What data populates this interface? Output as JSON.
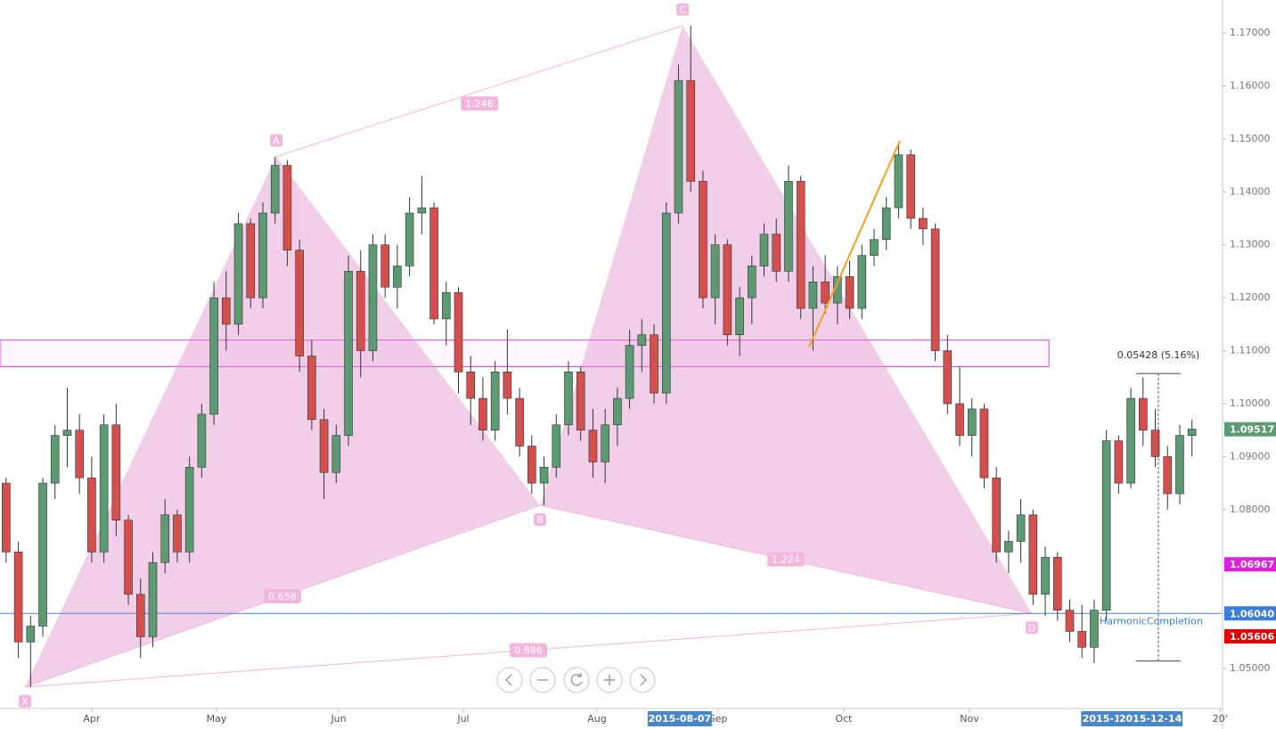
{
  "chart_data": {
    "type": "candlestick",
    "xlim": [
      0,
      100
    ],
    "ylim": [
      1.04244,
      1.17623
    ],
    "xticks": [
      {
        "value": 7.5,
        "label": "Apr"
      },
      {
        "value": 17.71,
        "label": "May"
      },
      {
        "value": 27.7,
        "label": "Jun"
      },
      {
        "value": 37.9,
        "label": "Jul"
      },
      {
        "value": 48.83,
        "label": "Aug"
      },
      {
        "value": 58.75,
        "label": "Sep"
      },
      {
        "value": 69.02,
        "label": "Oct"
      },
      {
        "value": 79.3,
        "label": "Nov"
      },
      {
        "value": 99.8,
        "label": "20'"
      }
    ],
    "yticks": [
      {
        "value": 1.05,
        "label": "1.05000"
      },
      {
        "value": 1.06,
        "label": "1.06000"
      },
      {
        "value": 1.07,
        "label": "1.07000"
      },
      {
        "value": 1.08,
        "label": "1.08000"
      },
      {
        "value": 1.09,
        "label": "1.09000"
      },
      {
        "value": 1.1,
        "label": "1.10000"
      },
      {
        "value": 1.11,
        "label": "1.11000"
      },
      {
        "value": 1.12,
        "label": "1.12000"
      },
      {
        "value": 1.13,
        "label": "1.13000"
      },
      {
        "value": 1.14,
        "label": "1.14000"
      },
      {
        "value": 1.15,
        "label": "1.15000"
      },
      {
        "value": 1.16,
        "label": "1.16000"
      },
      {
        "value": 1.17,
        "label": "1.17000"
      }
    ],
    "up_color": "#5b9a73",
    "down_color": "#d4504e",
    "ohlc": [
      [
        1.085,
        1.086,
        1.07,
        1.072
      ],
      [
        1.072,
        1.074,
        1.052,
        1.055
      ],
      [
        1.055,
        1.06,
        1.0465,
        1.058
      ],
      [
        1.058,
        1.086,
        1.056,
        1.085
      ],
      [
        1.085,
        1.096,
        1.082,
        1.094
      ],
      [
        1.094,
        1.103,
        1.088,
        1.095
      ],
      [
        1.095,
        1.098,
        1.083,
        1.086
      ],
      [
        1.086,
        1.09,
        1.07,
        1.072
      ],
      [
        1.072,
        1.098,
        1.07,
        1.096
      ],
      [
        1.096,
        1.1,
        1.075,
        1.078
      ],
      [
        1.078,
        1.079,
        1.062,
        1.064
      ],
      [
        1.064,
        1.067,
        1.052,
        1.056
      ],
      [
        1.056,
        1.072,
        1.054,
        1.07
      ],
      [
        1.07,
        1.082,
        1.068,
        1.079
      ],
      [
        1.079,
        1.08,
        1.07,
        1.072
      ],
      [
        1.072,
        1.09,
        1.07,
        1.088
      ],
      [
        1.088,
        1.1,
        1.086,
        1.098
      ],
      [
        1.098,
        1.123,
        1.096,
        1.12
      ],
      [
        1.12,
        1.125,
        1.11,
        1.115
      ],
      [
        1.115,
        1.136,
        1.113,
        1.134
      ],
      [
        1.134,
        1.135,
        1.118,
        1.12
      ],
      [
        1.12,
        1.138,
        1.118,
        1.136
      ],
      [
        1.136,
        1.1467,
        1.134,
        1.145
      ],
      [
        1.145,
        1.146,
        1.126,
        1.129
      ],
      [
        1.129,
        1.131,
        1.106,
        1.109
      ],
      [
        1.109,
        1.112,
        1.095,
        1.097
      ],
      [
        1.097,
        1.099,
        1.082,
        1.087
      ],
      [
        1.087,
        1.096,
        1.085,
        1.094
      ],
      [
        1.094,
        1.128,
        1.092,
        1.125
      ],
      [
        1.125,
        1.129,
        1.105,
        1.11
      ],
      [
        1.11,
        1.132,
        1.108,
        1.13
      ],
      [
        1.13,
        1.132,
        1.12,
        1.122
      ],
      [
        1.122,
        1.13,
        1.118,
        1.126
      ],
      [
        1.126,
        1.139,
        1.124,
        1.136
      ],
      [
        1.136,
        1.143,
        1.132,
        1.137
      ],
      [
        1.137,
        1.138,
        1.115,
        1.116
      ],
      [
        1.116,
        1.123,
        1.111,
        1.121
      ],
      [
        1.121,
        1.122,
        1.102,
        1.106
      ],
      [
        1.106,
        1.109,
        1.096,
        1.101
      ],
      [
        1.101,
        1.105,
        1.093,
        1.095
      ],
      [
        1.095,
        1.108,
        1.093,
        1.106
      ],
      [
        1.106,
        1.114,
        1.098,
        1.101
      ],
      [
        1.101,
        1.103,
        1.09,
        1.092
      ],
      [
        1.092,
        1.094,
        1.083,
        1.085
      ],
      [
        1.085,
        1.09,
        1.0808,
        1.088
      ],
      [
        1.088,
        1.098,
        1.086,
        1.096
      ],
      [
        1.096,
        1.108,
        1.094,
        1.106
      ],
      [
        1.106,
        1.107,
        1.093,
        1.095
      ],
      [
        1.095,
        1.099,
        1.086,
        1.089
      ],
      [
        1.089,
        1.099,
        1.085,
        1.096
      ],
      [
        1.096,
        1.103,
        1.092,
        1.101
      ],
      [
        1.101,
        1.114,
        1.099,
        1.111
      ],
      [
        1.111,
        1.116,
        1.106,
        1.113
      ],
      [
        1.113,
        1.115,
        1.1,
        1.102
      ],
      [
        1.102,
        1.138,
        1.1,
        1.136
      ],
      [
        1.136,
        1.164,
        1.134,
        1.161
      ],
      [
        1.161,
        1.1714,
        1.14,
        1.142
      ],
      [
        1.142,
        1.144,
        1.118,
        1.12
      ],
      [
        1.12,
        1.132,
        1.115,
        1.13
      ],
      [
        1.13,
        1.131,
        1.111,
        1.113
      ],
      [
        1.113,
        1.122,
        1.109,
        1.12
      ],
      [
        1.12,
        1.128,
        1.115,
        1.126
      ],
      [
        1.126,
        1.134,
        1.124,
        1.132
      ],
      [
        1.132,
        1.135,
        1.123,
        1.125
      ],
      [
        1.125,
        1.145,
        1.123,
        1.142
      ],
      [
        1.142,
        1.143,
        1.116,
        1.118
      ],
      [
        1.118,
        1.126,
        1.11,
        1.123
      ],
      [
        1.123,
        1.128,
        1.117,
        1.119
      ],
      [
        1.119,
        1.126,
        1.115,
        1.124
      ],
      [
        1.124,
        1.127,
        1.116,
        1.118
      ],
      [
        1.118,
        1.13,
        1.116,
        1.128
      ],
      [
        1.128,
        1.133,
        1.126,
        1.131
      ],
      [
        1.131,
        1.139,
        1.129,
        1.137
      ],
      [
        1.137,
        1.149,
        1.135,
        1.147
      ],
      [
        1.147,
        1.148,
        1.133,
        1.135
      ],
      [
        1.135,
        1.137,
        1.13,
        1.133
      ],
      [
        1.133,
        1.134,
        1.108,
        1.11
      ],
      [
        1.11,
        1.113,
        1.098,
        1.1
      ],
      [
        1.1,
        1.107,
        1.092,
        1.094
      ],
      [
        1.094,
        1.101,
        1.09,
        1.099
      ],
      [
        1.099,
        1.1,
        1.084,
        1.086
      ],
      [
        1.086,
        1.088,
        1.07,
        1.072
      ],
      [
        1.072,
        1.076,
        1.068,
        1.074
      ],
      [
        1.074,
        1.082,
        1.07,
        1.079
      ],
      [
        1.079,
        1.08,
        1.062,
        1.064
      ],
      [
        1.064,
        1.073,
        1.06,
        1.071
      ],
      [
        1.071,
        1.072,
        1.059,
        1.061
      ],
      [
        1.061,
        1.063,
        1.055,
        1.057
      ],
      [
        1.057,
        1.062,
        1.052,
        1.054
      ],
      [
        1.054,
        1.063,
        1.051,
        1.061
      ],
      [
        1.061,
        1.095,
        1.059,
        1.093
      ],
      [
        1.093,
        1.094,
        1.083,
        1.085
      ],
      [
        1.085,
        1.103,
        1.084,
        1.101
      ],
      [
        1.101,
        1.105,
        1.092,
        1.095
      ],
      [
        1.095,
        1.099,
        1.088,
        1.09
      ],
      [
        1.09,
        1.092,
        1.08,
        1.083
      ],
      [
        1.083,
        1.096,
        1.081,
        1.094
      ],
      [
        1.094,
        1.097,
        1.09,
        1.0952
      ]
    ],
    "zone": {
      "top": 1.112,
      "bottom": 1.107,
      "x_end": 85.8,
      "color": "#e040e0"
    },
    "pattern": {
      "color": "#de82c4",
      "points": [
        {
          "label": "X",
          "x": 2.04,
          "price": 1.0465
        },
        {
          "label": "A",
          "x": 22.6,
          "price": 1.1467
        },
        {
          "label": "B",
          "x": 44.17,
          "price": 1.0808
        },
        {
          "label": "C",
          "x": 55.83,
          "price": 1.1714
        },
        {
          "label": "D",
          "x": 84.4,
          "price": 1.0604
        }
      ],
      "ratios": [
        1.246,
        0.656,
        1.224,
        0.886
      ]
    },
    "trendline": {
      "x": [
        66.18,
        73.6
      ],
      "price": [
        1.1107,
        1.1496
      ],
      "color": "#f7a01e"
    },
    "completion_line": {
      "price": 1.0604,
      "color": "#4a86c8"
    },
    "completion_label": "HarmonicCompletion",
    "measure": {
      "label": "0.05428 (5.16%)",
      "x": 94.75,
      "from": 1.0514,
      "to": 1.1057
    },
    "price_labels": [
      {
        "value": 1.09517,
        "label": "1.09517",
        "color": "#5b9a73"
      },
      {
        "value": 1.06967,
        "label": "1.06967",
        "color": "#e020e0"
      },
      {
        "value": 1.0604,
        "label": "1.06040",
        "color": "#3b7dd8"
      },
      {
        "value": 1.05606,
        "label": "1.05606",
        "color": "#e00000"
      }
    ],
    "date_markers": [
      {
        "label": "2015-08-07",
        "x": 55.6
      },
      {
        "label": "2015-1",
        "x": 90.1
      },
      {
        "label": "2015-12-14",
        "x": 94.1
      }
    ]
  }
}
